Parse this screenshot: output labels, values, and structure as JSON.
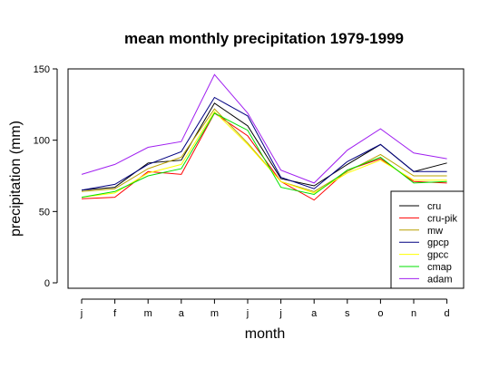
{
  "chart_data": {
    "type": "line",
    "title": "mean monthly precipitation 1979-1999",
    "xlabel": "month",
    "ylabel": "precipitation (mm)",
    "categories": [
      "j",
      "f",
      "m",
      "a",
      "m",
      "j",
      "j",
      "a",
      "s",
      "o",
      "n",
      "d"
    ],
    "ylim": [
      0,
      150
    ],
    "yticks": [
      0,
      50,
      100,
      150
    ],
    "grid": false,
    "legend_position": "bottom-right",
    "series": [
      {
        "name": "cru",
        "color": "#000000",
        "values": [
          65,
          67,
          84,
          86,
          126,
          110,
          73,
          68,
          83,
          97,
          78,
          84
        ]
      },
      {
        "name": "cru-pik",
        "color": "#ff0000",
        "values": [
          59,
          60,
          78,
          76,
          119,
          103,
          71,
          58,
          79,
          87,
          71,
          70
        ]
      },
      {
        "name": "mw",
        "color": "#b8a000",
        "values": [
          64,
          66,
          80,
          88,
          122,
          98,
          71,
          64,
          78,
          90,
          75,
          75
        ]
      },
      {
        "name": "gpcp",
        "color": "#000080",
        "values": [
          65,
          69,
          83,
          92,
          130,
          117,
          74,
          66,
          85,
          97,
          78,
          78
        ]
      },
      {
        "name": "gpcc",
        "color": "#ffff00",
        "values": [
          60,
          63,
          77,
          83,
          120,
          97,
          71,
          63,
          77,
          86,
          72,
          72
        ]
      },
      {
        "name": "cmap",
        "color": "#00e000",
        "values": [
          60,
          64,
          75,
          80,
          119,
          107,
          67,
          62,
          79,
          88,
          70,
          71
        ]
      },
      {
        "name": "adam",
        "color": "#a020f0",
        "values": [
          76,
          83,
          95,
          99,
          146,
          119,
          79,
          70,
          93,
          108,
          91,
          87
        ]
      }
    ]
  }
}
